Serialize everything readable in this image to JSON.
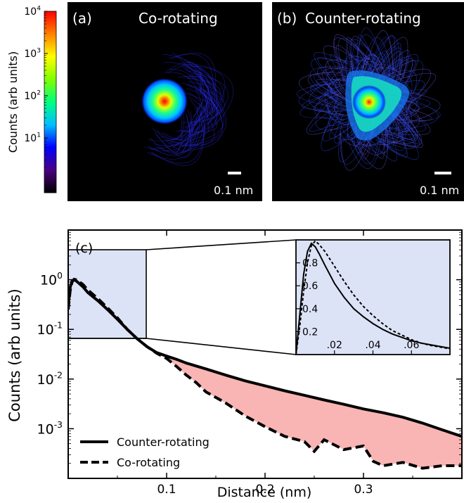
{
  "colorbar": {
    "label": "Counts (arb units)",
    "ticks": [
      {
        "exp": 4,
        "text_base": "10",
        "text_exp": "4"
      },
      {
        "exp": 3,
        "text_base": "10",
        "text_exp": "3"
      },
      {
        "exp": 2,
        "text_base": "10",
        "text_exp": "2"
      },
      {
        "exp": 1,
        "text_base": "10",
        "text_exp": "1"
      }
    ],
    "colors": [
      "#000000",
      "#4b0082",
      "#0000ff",
      "#00bfff",
      "#00ff80",
      "#80ff00",
      "#ffff00",
      "#ff8000",
      "#ff0000"
    ]
  },
  "panel_a": {
    "tag": "(a)",
    "title": "Co-rotating",
    "scalebar_label": "0.1 nm",
    "shape": "round"
  },
  "panel_b": {
    "tag": "(b)",
    "title": "Counter-rotating",
    "scalebar_label": "0.1 nm",
    "shape": "triangular"
  },
  "panel_c": {
    "tag": "(c)",
    "fill_color": "#f9b4b4",
    "inset_bg": "#dde3f6"
  },
  "chart_data": [
    {
      "type": "line",
      "panel": "(c)",
      "xlabel": "Distance (nm)",
      "ylabel": "Counts (arb units)",
      "xlim": [
        0.0,
        0.4
      ],
      "ylim": [
        0.0001,
        10
      ],
      "yscale": "log",
      "xticks": [
        0.1,
        0.2,
        0.3
      ],
      "xtick_labels": [
        "0.1",
        "0.2",
        "0.3"
      ],
      "yticks": [
        1,
        0.1,
        0.01,
        0.001
      ],
      "ytick_labels": [
        {
          "base": "10",
          "exp": "0"
        },
        {
          "base": "10",
          "exp": "-1"
        },
        {
          "base": "10",
          "exp": "-2"
        },
        {
          "base": "10",
          "exp": "-3"
        }
      ],
      "legend_position": "bottom-left",
      "fill_between_series": true,
      "series": [
        {
          "name": "Counter-rotating",
          "style": "solid",
          "x": [
            0.0,
            0.002,
            0.004,
            0.006,
            0.008,
            0.01,
            0.015,
            0.02,
            0.03,
            0.04,
            0.05,
            0.06,
            0.07,
            0.08,
            0.09,
            0.1,
            0.11,
            0.12,
            0.14,
            0.16,
            0.18,
            0.2,
            0.22,
            0.24,
            0.26,
            0.28,
            0.3,
            0.32,
            0.34,
            0.36,
            0.38,
            0.4
          ],
          "y": [
            0.3,
            0.7,
            0.95,
            1.0,
            0.95,
            0.88,
            0.72,
            0.55,
            0.38,
            0.25,
            0.16,
            0.1,
            0.065,
            0.045,
            0.034,
            0.029,
            0.025,
            0.021,
            0.016,
            0.012,
            0.0092,
            0.0073,
            0.0058,
            0.0047,
            0.0038,
            0.0031,
            0.0025,
            0.0021,
            0.0017,
            0.0013,
            0.00095,
            0.0007
          ]
        },
        {
          "name": "Co-rotating",
          "style": "dashed",
          "x": [
            0.0,
            0.002,
            0.004,
            0.006,
            0.008,
            0.01,
            0.015,
            0.02,
            0.03,
            0.04,
            0.05,
            0.06,
            0.07,
            0.08,
            0.09,
            0.1,
            0.11,
            0.12,
            0.13,
            0.14,
            0.16,
            0.18,
            0.2,
            0.22,
            0.24,
            0.25,
            0.26,
            0.28,
            0.3,
            0.31,
            0.32,
            0.34,
            0.36,
            0.38,
            0.4
          ],
          "y": [
            0.25,
            0.6,
            0.9,
            1.02,
            1.0,
            0.95,
            0.8,
            0.62,
            0.42,
            0.27,
            0.17,
            0.1,
            0.065,
            0.045,
            0.033,
            0.026,
            0.018,
            0.012,
            0.0085,
            0.0055,
            0.0033,
            0.0018,
            0.0011,
            0.0007,
            0.00055,
            0.00035,
            0.0006,
            0.00038,
            0.00045,
            0.00022,
            0.00018,
            0.00021,
            0.00016,
            0.00018,
            0.00018
          ]
        }
      ]
    },
    {
      "type": "line",
      "panel": "(c) inset",
      "xlim": [
        0.0,
        0.08
      ],
      "ylim": [
        0.0,
        1.0
      ],
      "yscale": "linear",
      "xticks": [
        0.02,
        0.04,
        0.06
      ],
      "xtick_labels": [
        ".02",
        ".04",
        ".06"
      ],
      "yticks": [
        0.2,
        0.4,
        0.6,
        0.8
      ],
      "ytick_labels": [
        "0.2",
        "0.4",
        "0.6",
        "0.8"
      ],
      "series": [
        {
          "name": "Counter-rotating",
          "style": "solid",
          "x": [
            0.0,
            0.002,
            0.004,
            0.006,
            0.008,
            0.01,
            0.012,
            0.015,
            0.02,
            0.025,
            0.03,
            0.035,
            0.04,
            0.045,
            0.05,
            0.055,
            0.06,
            0.065,
            0.07,
            0.075,
            0.08
          ],
          "y": [
            0.0,
            0.35,
            0.7,
            0.9,
            0.97,
            0.94,
            0.88,
            0.78,
            0.62,
            0.5,
            0.4,
            0.33,
            0.27,
            0.22,
            0.18,
            0.15,
            0.12,
            0.1,
            0.085,
            0.07,
            0.055
          ]
        },
        {
          "name": "Co-rotating",
          "style": "dashed",
          "x": [
            0.0,
            0.002,
            0.004,
            0.006,
            0.008,
            0.01,
            0.012,
            0.015,
            0.02,
            0.025,
            0.03,
            0.035,
            0.04,
            0.045,
            0.05,
            0.055,
            0.06,
            0.065,
            0.07,
            0.075,
            0.08
          ],
          "y": [
            0.0,
            0.25,
            0.55,
            0.8,
            0.95,
            0.99,
            0.96,
            0.9,
            0.77,
            0.64,
            0.52,
            0.42,
            0.34,
            0.27,
            0.21,
            0.17,
            0.13,
            0.1,
            0.08,
            0.065,
            0.05
          ]
        }
      ]
    }
  ]
}
